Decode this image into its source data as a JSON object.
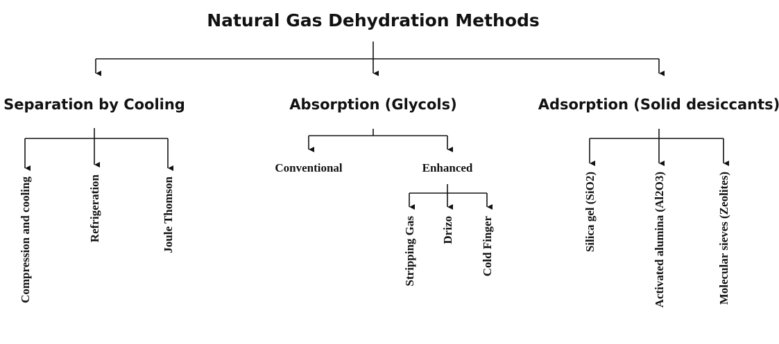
{
  "title": "Natural Gas Dehydration Methods",
  "branches": [
    {
      "label": "Separation by Cooling",
      "children": [
        "Compression and cooling",
        "Refrigeration",
        "Joule Thomson"
      ]
    },
    {
      "label": "Absorption (Glycols)",
      "children": [
        {
          "label": "Conventional"
        },
        {
          "label": "Enhanced",
          "children": [
            "Stripping Gas",
            "Drizo",
            "Cold Finger"
          ]
        }
      ]
    },
    {
      "label": "Adsorption (Solid desiccants)",
      "children": [
        "Silica gel (SiO2)",
        "Activated alumina (Al2O3)",
        "Molecular sieves (Zeolites)"
      ]
    }
  ]
}
